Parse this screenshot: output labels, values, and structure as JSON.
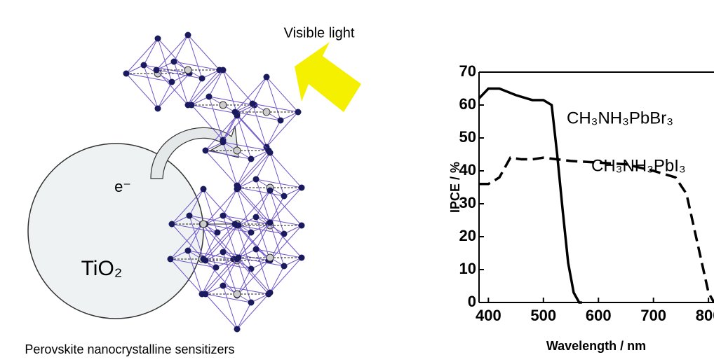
{
  "diagram": {
    "light_label": "Visible light",
    "electron_label": "e⁻",
    "substrate_label": "TiO₂",
    "caption": "Perovskite nanocrystalline sensitizers"
  },
  "chart_data": {
    "type": "line",
    "xlabel": "Wavelength / nm",
    "ylabel": "IPCE / %",
    "xlim": [
      383,
      810
    ],
    "ylim": [
      0,
      70
    ],
    "xticks": [
      400,
      500,
      600,
      700,
      800
    ],
    "yticks": [
      0,
      10,
      20,
      30,
      40,
      50,
      60,
      70
    ],
    "series": [
      {
        "name": "CH₃NH₃PbBr₃",
        "color": "#000000",
        "dash": false,
        "x": [
          383,
          400,
          420,
          450,
          480,
          500,
          515,
          525,
          535,
          545,
          555,
          565,
          570
        ],
        "values": [
          62,
          65,
          65,
          63,
          61.5,
          61.5,
          60,
          45,
          28,
          12,
          3,
          0,
          0
        ]
      },
      {
        "name": "CH₃NH₃PbI₃",
        "color": "#000000",
        "dash": true,
        "x": [
          383,
          400,
          420,
          440,
          460,
          480,
          500,
          550,
          600,
          650,
          700,
          740,
          760,
          780,
          800,
          810
        ],
        "values": [
          36,
          36,
          38,
          44,
          43.5,
          43.5,
          44,
          43,
          42.5,
          42,
          40,
          38,
          33,
          18,
          3,
          0
        ]
      }
    ]
  }
}
